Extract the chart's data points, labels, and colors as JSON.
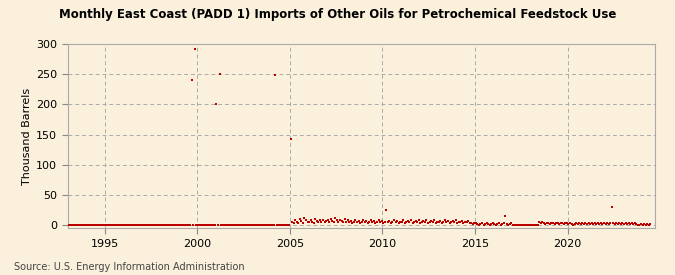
{
  "title": "Monthly East Coast (PADD 1) Imports of Other Oils for Petrochemical Feedstock Use",
  "ylabel": "Thousand Barrels",
  "source": "Source: U.S. Energy Information Administration",
  "background_color": "#FAF0DC",
  "plot_bg_color": "#FAF0DC",
  "marker_color": "#BB0000",
  "marker": "s",
  "markersize": 4,
  "xlim": [
    1993.0,
    2024.7
  ],
  "ylim": [
    -5,
    300
  ],
  "yticks": [
    0,
    50,
    100,
    150,
    200,
    250,
    300
  ],
  "xticks": [
    1995,
    2000,
    2005,
    2010,
    2015,
    2020
  ],
  "data": {
    "1993-01": 0,
    "1993-02": 0,
    "1993-03": 0,
    "1993-04": 0,
    "1993-05": 0,
    "1993-06": 0,
    "1993-07": 0,
    "1993-08": 0,
    "1993-09": 0,
    "1993-10": 0,
    "1993-11": 0,
    "1993-12": 0,
    "1994-01": 0,
    "1994-02": 0,
    "1994-03": 0,
    "1994-04": 0,
    "1994-05": 0,
    "1994-06": 0,
    "1994-07": 0,
    "1994-08": 0,
    "1994-09": 0,
    "1994-10": 0,
    "1994-11": 0,
    "1994-12": 0,
    "1995-01": 0,
    "1995-02": 0,
    "1995-03": 0,
    "1995-04": 0,
    "1995-05": 0,
    "1995-06": 0,
    "1995-07": 0,
    "1995-08": 0,
    "1995-09": 0,
    "1995-10": 0,
    "1995-11": 0,
    "1995-12": 0,
    "1996-01": 0,
    "1996-02": 0,
    "1996-03": 0,
    "1996-04": 0,
    "1996-05": 0,
    "1996-06": 0,
    "1996-07": 0,
    "1996-08": 0,
    "1996-09": 0,
    "1996-10": 0,
    "1996-11": 0,
    "1996-12": 0,
    "1997-01": 0,
    "1997-02": 0,
    "1997-03": 0,
    "1997-04": 0,
    "1997-05": 0,
    "1997-06": 0,
    "1997-07": 0,
    "1997-08": 0,
    "1997-09": 0,
    "1997-10": 0,
    "1997-11": 0,
    "1997-12": 0,
    "1998-01": 0,
    "1998-02": 0,
    "1998-03": 0,
    "1998-04": 0,
    "1998-05": 0,
    "1998-06": 0,
    "1998-07": 0,
    "1998-08": 0,
    "1998-09": 0,
    "1998-10": 0,
    "1998-11": 0,
    "1998-12": 0,
    "1999-01": 0,
    "1999-02": 0,
    "1999-03": 0,
    "1999-04": 0,
    "1999-05": 0,
    "1999-06": 0,
    "1999-07": 0,
    "1999-08": 0,
    "1999-09": 240,
    "1999-10": 0,
    "1999-11": 291,
    "1999-12": 0,
    "2000-01": 0,
    "2000-02": 0,
    "2000-03": 0,
    "2000-04": 0,
    "2000-05": 0,
    "2000-06": 0,
    "2000-07": 0,
    "2000-08": 0,
    "2000-09": 0,
    "2000-10": 0,
    "2000-11": 0,
    "2000-12": 0,
    "2001-01": 200,
    "2001-02": 0,
    "2001-03": 250,
    "2001-04": 0,
    "2001-05": 0,
    "2001-06": 0,
    "2001-07": 0,
    "2001-08": 0,
    "2001-09": 0,
    "2001-10": 0,
    "2001-11": 0,
    "2001-12": 0,
    "2002-01": 0,
    "2002-02": 0,
    "2002-03": 0,
    "2002-04": 0,
    "2002-05": 0,
    "2002-06": 0,
    "2002-07": 0,
    "2002-08": 0,
    "2002-09": 0,
    "2002-10": 0,
    "2002-11": 0,
    "2002-12": 0,
    "2003-01": 0,
    "2003-02": 0,
    "2003-03": 0,
    "2003-04": 0,
    "2003-05": 0,
    "2003-06": 0,
    "2003-07": 0,
    "2003-08": 0,
    "2003-09": 0,
    "2003-10": 0,
    "2003-11": 0,
    "2003-12": 0,
    "2004-01": 0,
    "2004-02": 0,
    "2004-03": 248,
    "2004-04": 0,
    "2004-05": 0,
    "2004-06": 0,
    "2004-07": 0,
    "2004-08": 0,
    "2004-09": 0,
    "2004-10": 0,
    "2004-11": 0,
    "2004-12": 0,
    "2005-01": 143,
    "2005-02": 6,
    "2005-03": 4,
    "2005-04": 8,
    "2005-05": 5,
    "2005-06": 3,
    "2005-07": 10,
    "2005-08": 7,
    "2005-09": 4,
    "2005-10": 12,
    "2005-11": 9,
    "2005-12": 6,
    "2006-01": 5,
    "2006-02": 8,
    "2006-03": 6,
    "2006-04": 4,
    "2006-05": 10,
    "2006-06": 7,
    "2006-07": 5,
    "2006-08": 9,
    "2006-09": 6,
    "2006-10": 8,
    "2006-11": 5,
    "2006-12": 7,
    "2007-01": 8,
    "2007-02": 6,
    "2007-03": 10,
    "2007-04": 7,
    "2007-05": 5,
    "2007-06": 12,
    "2007-07": 8,
    "2007-08": 6,
    "2007-09": 9,
    "2007-10": 7,
    "2007-11": 5,
    "2007-12": 10,
    "2008-01": 6,
    "2008-02": 8,
    "2008-03": 5,
    "2008-04": 7,
    "2008-05": 4,
    "2008-06": 6,
    "2008-07": 8,
    "2008-08": 5,
    "2008-09": 7,
    "2008-10": 4,
    "2008-11": 6,
    "2008-12": 8,
    "2009-01": 5,
    "2009-02": 7,
    "2009-03": 4,
    "2009-04": 6,
    "2009-05": 8,
    "2009-06": 5,
    "2009-07": 7,
    "2009-08": 4,
    "2009-09": 6,
    "2009-10": 8,
    "2009-11": 5,
    "2009-12": 7,
    "2010-01": 4,
    "2010-02": 6,
    "2010-03": 25,
    "2010-04": 5,
    "2010-05": 7,
    "2010-06": 4,
    "2010-07": 6,
    "2010-08": 8,
    "2010-09": 5,
    "2010-10": 7,
    "2010-11": 4,
    "2010-12": 6,
    "2011-01": 5,
    "2011-02": 8,
    "2011-03": 4,
    "2011-04": 6,
    "2011-05": 7,
    "2011-06": 5,
    "2011-07": 8,
    "2011-08": 4,
    "2011-09": 6,
    "2011-10": 7,
    "2011-11": 5,
    "2011-12": 8,
    "2012-01": 4,
    "2012-02": 6,
    "2012-03": 7,
    "2012-04": 5,
    "2012-05": 8,
    "2012-06": 4,
    "2012-07": 6,
    "2012-08": 7,
    "2012-09": 5,
    "2012-10": 8,
    "2012-11": 4,
    "2012-12": 6,
    "2013-01": 5,
    "2013-02": 7,
    "2013-03": 4,
    "2013-04": 6,
    "2013-05": 8,
    "2013-06": 5,
    "2013-07": 7,
    "2013-08": 4,
    "2013-09": 6,
    "2013-10": 7,
    "2013-11": 5,
    "2013-12": 8,
    "2014-01": 4,
    "2014-02": 6,
    "2014-03": 5,
    "2014-04": 7,
    "2014-05": 4,
    "2014-06": 6,
    "2014-07": 5,
    "2014-08": 7,
    "2014-09": 4,
    "2014-10": 3,
    "2014-11": 2,
    "2014-12": 4,
    "2015-01": 3,
    "2015-02": 2,
    "2015-03": 1,
    "2015-04": 2,
    "2015-05": 3,
    "2015-06": 1,
    "2015-07": 2,
    "2015-08": 3,
    "2015-09": 2,
    "2015-10": 1,
    "2015-11": 2,
    "2015-12": 3,
    "2016-01": 2,
    "2016-02": 1,
    "2016-03": 2,
    "2016-04": 3,
    "2016-05": 1,
    "2016-06": 2,
    "2016-07": 3,
    "2016-08": 15,
    "2016-09": 2,
    "2016-10": 1,
    "2016-11": 2,
    "2016-12": 3,
    "2017-01": 0,
    "2017-02": 0,
    "2017-03": 0,
    "2017-04": 0,
    "2017-05": 0,
    "2017-06": 0,
    "2017-07": 0,
    "2017-08": 0,
    "2017-09": 0,
    "2017-10": 0,
    "2017-11": 0,
    "2017-12": 0,
    "2018-01": 0,
    "2018-02": 0,
    "2018-03": 0,
    "2018-04": 0,
    "2018-05": 0,
    "2018-06": 5,
    "2018-07": 4,
    "2018-08": 6,
    "2018-09": 3,
    "2018-10": 2,
    "2018-11": 4,
    "2018-12": 3,
    "2019-01": 2,
    "2019-02": 4,
    "2019-03": 3,
    "2019-04": 2,
    "2019-05": 4,
    "2019-06": 3,
    "2019-07": 2,
    "2019-08": 4,
    "2019-09": 3,
    "2019-10": 2,
    "2019-11": 4,
    "2019-12": 3,
    "2020-01": 2,
    "2020-02": 3,
    "2020-03": 2,
    "2020-04": 1,
    "2020-05": 2,
    "2020-06": 3,
    "2020-07": 2,
    "2020-08": 3,
    "2020-09": 2,
    "2020-10": 3,
    "2020-11": 2,
    "2020-12": 3,
    "2021-01": 2,
    "2021-02": 3,
    "2021-03": 2,
    "2021-04": 3,
    "2021-05": 2,
    "2021-06": 3,
    "2021-07": 2,
    "2021-08": 3,
    "2021-09": 2,
    "2021-10": 3,
    "2021-11": 2,
    "2021-12": 3,
    "2022-01": 2,
    "2022-02": 3,
    "2022-03": 2,
    "2022-04": 3,
    "2022-05": 30,
    "2022-06": 3,
    "2022-07": 2,
    "2022-08": 3,
    "2022-09": 2,
    "2022-10": 3,
    "2022-11": 2,
    "2022-12": 3,
    "2023-01": 2,
    "2023-02": 3,
    "2023-03": 2,
    "2023-04": 3,
    "2023-05": 2,
    "2023-06": 3,
    "2023-07": 2,
    "2023-08": 3,
    "2023-09": 2,
    "2023-10": 1,
    "2023-11": 1,
    "2023-12": 2,
    "2024-01": 1,
    "2024-02": 2,
    "2024-03": 1,
    "2024-04": 2,
    "2024-05": 1,
    "2024-06": 2
  }
}
